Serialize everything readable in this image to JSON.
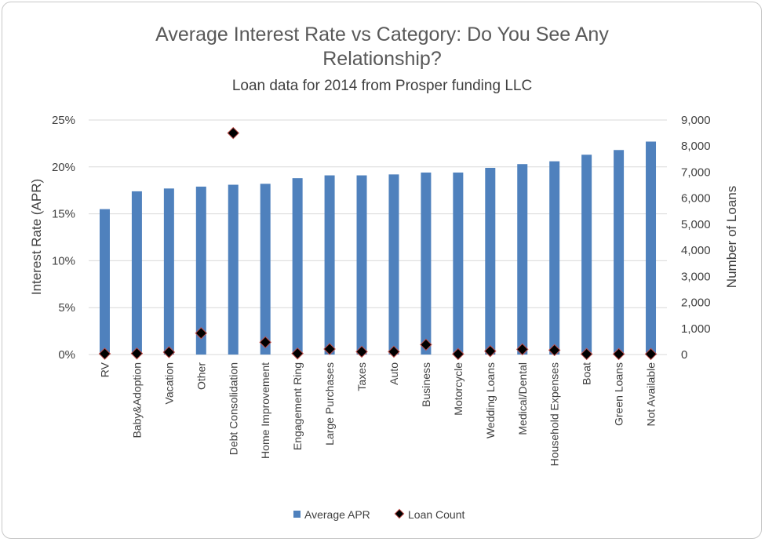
{
  "chart_data": {
    "type": "bar",
    "title_lines": [
      "Average Interest Rate vs Category: Do You See Any",
      "Relationship?"
    ],
    "subtitle": "Loan data for 2014 from Prosper funding LLC",
    "ylabel_left": "Interest Rate (APR)",
    "ylabel_right": "Number of Loans",
    "yticks_left": [
      "0%",
      "5%",
      "10%",
      "15%",
      "20%",
      "25%"
    ],
    "yticks_right": [
      "0",
      "1,000",
      "2,000",
      "3,000",
      "4,000",
      "5,000",
      "6,000",
      "7,000",
      "8,000",
      "9,000"
    ],
    "ylim_left": [
      0,
      0.25
    ],
    "ylim_right": [
      0,
      9000
    ],
    "categories": [
      "RV",
      "Baby&Adoption",
      "Vacation",
      "Other",
      "Debt Consolidation",
      "Home Improvement",
      "Engagement Ring",
      "Large Purchases",
      "Taxes",
      "Auto",
      "Business",
      "Motorcycle",
      "Wedding Loans",
      "Medical/Dental",
      "Household Expenses",
      "Boat",
      "Green Loans",
      "Not Available"
    ],
    "series": [
      {
        "name": "Average APR",
        "kind": "bar",
        "axis": "left",
        "color": "#4F81BD",
        "values": [
          0.155,
          0.174,
          0.177,
          0.179,
          0.181,
          0.182,
          0.188,
          0.191,
          0.191,
          0.192,
          0.194,
          0.194,
          0.199,
          0.203,
          0.206,
          0.213,
          0.218,
          0.227
        ]
      },
      {
        "name": "Loan Count",
        "kind": "marker",
        "axis": "right",
        "color": "#000000",
        "edge_color": "#C0504D",
        "values": [
          30,
          40,
          90,
          820,
          8500,
          470,
          40,
          210,
          110,
          110,
          380,
          20,
          130,
          200,
          170,
          20,
          20,
          20
        ]
      }
    ],
    "grid": true,
    "legend": "bottom"
  }
}
